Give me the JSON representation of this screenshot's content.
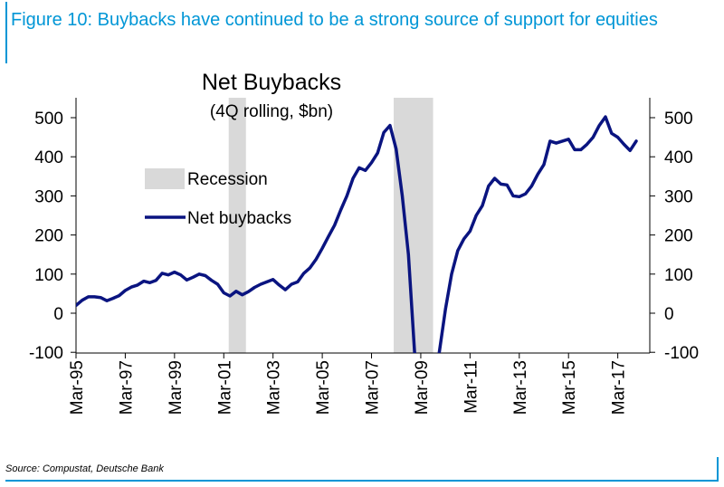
{
  "figure": {
    "title": "Figure 10: Buybacks have continued to be a strong source of support for equities",
    "source": "Source: Compustat, Deutsche Bank"
  },
  "colors": {
    "accent": "#0096d6",
    "line": "#0a1480",
    "recession": "#d9d9d9"
  },
  "chart_data": {
    "type": "line",
    "title": "Net Buybacks",
    "subtitle": "(4Q rolling, $bn)",
    "xlabel": "",
    "ylabel": "",
    "ylim": [
      -100,
      550
    ],
    "y_ticks": [
      500,
      400,
      300,
      200,
      100,
      0,
      -100
    ],
    "y_tick_labels": [
      "500",
      "400",
      "300",
      "200",
      "100",
      "0",
      "-100"
    ],
    "x_tick_labels": [
      "Mar-95",
      "Mar-97",
      "Mar-99",
      "Mar-01",
      "Mar-03",
      "Mar-05",
      "Mar-07",
      "Mar-09",
      "Mar-11",
      "Mar-13",
      "Mar-15",
      "Mar-17"
    ],
    "x_tick_values": [
      1995.0,
      1997.0,
      1999.0,
      2001.0,
      2003.0,
      2005.0,
      2007.0,
      2009.0,
      2011.0,
      2013.0,
      2015.0,
      2017.0
    ],
    "xlim": [
      1995.0,
      2018.3
    ],
    "grid": false,
    "legend": {
      "placement": "upper-left",
      "recession_label": "Recession",
      "series_label": "Net buybacks"
    },
    "recessions": [
      [
        2001.2,
        2001.9
      ],
      [
        2007.9,
        2009.5
      ]
    ],
    "series": [
      {
        "name": "Net buybacks",
        "x": [
          1995.0,
          1995.25,
          1995.5,
          1995.75,
          1996.0,
          1996.25,
          1996.5,
          1996.75,
          1997.0,
          1997.25,
          1997.5,
          1997.75,
          1998.0,
          1998.25,
          1998.5,
          1998.75,
          1999.0,
          1999.25,
          1999.5,
          1999.75,
          2000.0,
          2000.25,
          2000.5,
          2000.75,
          2001.0,
          2001.25,
          2001.5,
          2001.75,
          2002.0,
          2002.25,
          2002.5,
          2002.75,
          2003.0,
          2003.25,
          2003.5,
          2003.75,
          2004.0,
          2004.25,
          2004.5,
          2004.75,
          2005.0,
          2005.25,
          2005.5,
          2005.75,
          2006.0,
          2006.25,
          2006.5,
          2006.75,
          2007.0,
          2007.25,
          2007.5,
          2007.75,
          2008.0,
          2008.25,
          2008.5,
          2008.75,
          2009.0,
          2009.25,
          2009.5,
          2009.75,
          2010.0,
          2010.25,
          2010.5,
          2010.75,
          2011.0,
          2011.25,
          2011.5,
          2011.75,
          2012.0,
          2012.25,
          2012.5,
          2012.75,
          2013.0,
          2013.25,
          2013.5,
          2013.75,
          2014.0,
          2014.25,
          2014.5,
          2014.75,
          2015.0,
          2015.25,
          2015.5,
          2015.75,
          2016.0,
          2016.25,
          2016.5,
          2016.75,
          2017.0,
          2017.25,
          2017.5,
          2017.75
        ],
        "values": [
          20,
          33,
          42,
          42,
          40,
          32,
          38,
          45,
          58,
          67,
          72,
          82,
          78,
          84,
          102,
          98,
          105,
          98,
          85,
          92,
          100,
          96,
          84,
          74,
          52,
          44,
          56,
          47,
          55,
          66,
          74,
          80,
          86,
          72,
          60,
          74,
          80,
          102,
          116,
          138,
          166,
          196,
          225,
          264,
          300,
          345,
          372,
          365,
          385,
          410,
          462,
          480,
          420,
          300,
          150,
          -100,
          -150,
          -250,
          -200,
          -100,
          10,
          100,
          160,
          190,
          210,
          250,
          275,
          325,
          345,
          330,
          328,
          300,
          298,
          305,
          325,
          355,
          380,
          440,
          435,
          440,
          445,
          418,
          418,
          432,
          450,
          480,
          502,
          460,
          450,
          432,
          416,
          440
        ]
      }
    ]
  }
}
